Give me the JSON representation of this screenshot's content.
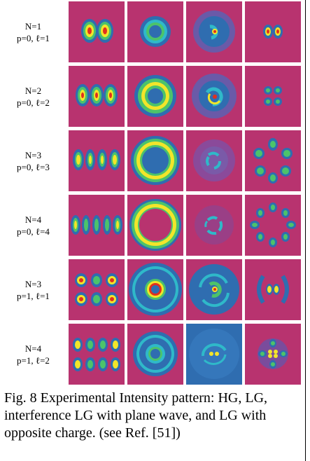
{
  "figure": {
    "rows": [
      {
        "n": "N=1",
        "params": "p=0, ℓ=1"
      },
      {
        "n": "N=2",
        "params": "p=0, ℓ=2"
      },
      {
        "n": "N=3",
        "params": "p=0, ℓ=3"
      },
      {
        "n": "N=4",
        "params": "p=0, ℓ=4"
      },
      {
        "n": "N=3",
        "params": "p=1, ℓ=1"
      },
      {
        "n": "N=4",
        "params": "p=1, ℓ=2"
      }
    ],
    "caption": "Fig. 8 Experimental Intensity pattern: HG, LG, interference LG with plane wave, and LG with opposite charge. (see Ref. [51])"
  },
  "colors": {
    "background_magenta": "#b8336f",
    "field_blue": "#2f6db0",
    "ring_cyan": "#2fb9c9",
    "mid_green": "#4cc36a",
    "hot_yellow": "#f2e52a",
    "peak_red": "#e0301e"
  }
}
